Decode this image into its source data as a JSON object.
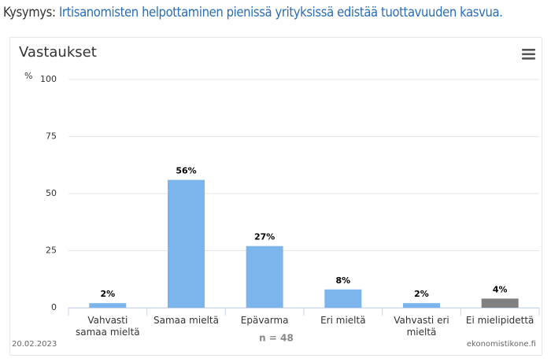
{
  "header": {
    "label": "Kysymys:",
    "question": "Irtisanomisten helpottaminen pienissä yrityksissä edistää tuottavuuden kasvua."
  },
  "chart_data": {
    "type": "bar",
    "title": "Vastaukset",
    "ylabel": "%",
    "categories": [
      "Vahvasti samaa mieltä",
      "Samaa mieltä",
      "Epävarma",
      "Eri mieltä",
      "Vahvasti eri mieltä",
      "Ei mielipidettä"
    ],
    "values": [
      2,
      56,
      27,
      8,
      2,
      4
    ],
    "value_labels": [
      "2%",
      "56%",
      "27%",
      "8%",
      "2%",
      "4%"
    ],
    "colors": [
      "#7cb5ec",
      "#7cb5ec",
      "#7cb5ec",
      "#7cb5ec",
      "#7cb5ec",
      "#808080"
    ],
    "ylim": [
      0,
      100
    ],
    "yticks": [
      0,
      25,
      50,
      75,
      100
    ],
    "grid": true
  },
  "footer": {
    "date": "20.02.2023",
    "n": "n = 48",
    "source": "ekonomistikone.fi"
  }
}
